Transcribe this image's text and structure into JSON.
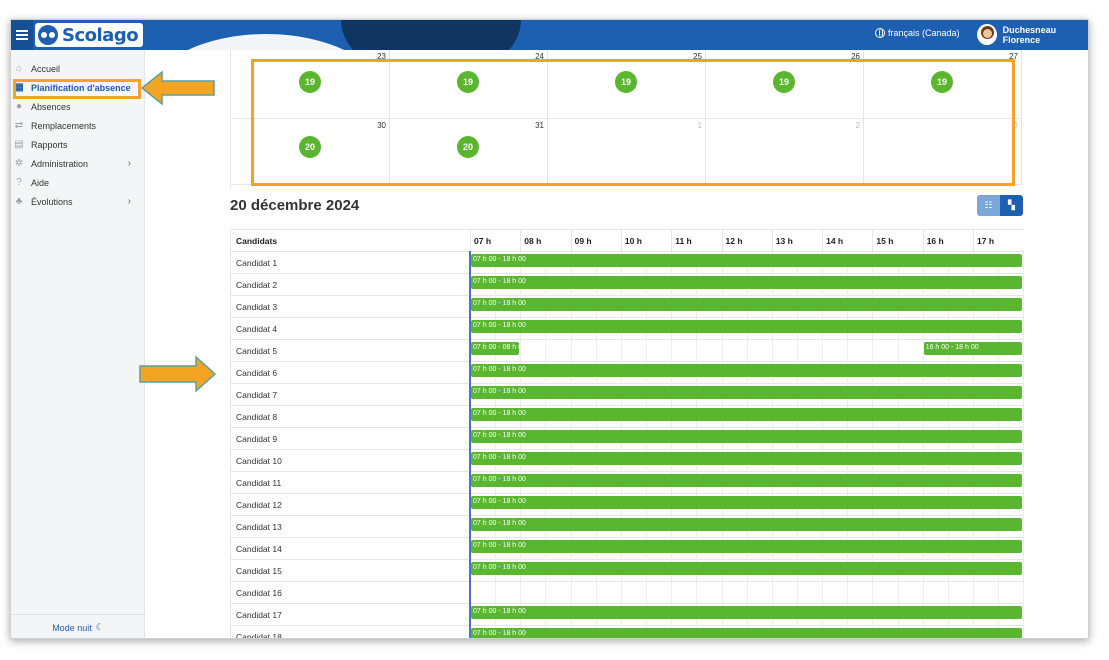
{
  "app": {
    "name": "Scolago"
  },
  "header": {
    "language": "français (Canada)",
    "user_name": "Duchesneau Florence"
  },
  "sidebar": {
    "items": [
      {
        "label": "Accueil",
        "icon": "home-icon",
        "glyph": "⌂"
      },
      {
        "label": "Planification d'absence",
        "icon": "calendar-icon",
        "glyph": "▦",
        "active": true
      },
      {
        "label": "Absences",
        "icon": "user-absence-icon",
        "glyph": "●"
      },
      {
        "label": "Remplacements",
        "icon": "swap-icon",
        "glyph": "⇄"
      },
      {
        "label": "Rapports",
        "icon": "document-icon",
        "glyph": "▤"
      },
      {
        "label": "Administration",
        "icon": "gear-icon",
        "glyph": "✲",
        "has_children": true
      },
      {
        "label": "Aide",
        "icon": "help-icon",
        "glyph": "?"
      },
      {
        "label": "Évolutions",
        "icon": "sprout-icon",
        "glyph": "♣",
        "has_children": true
      }
    ],
    "night_mode": "Mode nuit"
  },
  "calendar": {
    "weeks": [
      {
        "days": [
          {
            "num": "23",
            "badge": "19"
          },
          {
            "num": "24",
            "badge": "19"
          },
          {
            "num": "25",
            "badge": "19"
          },
          {
            "num": "26",
            "badge": "19"
          },
          {
            "num": "27",
            "badge": "19"
          }
        ]
      },
      {
        "days": [
          {
            "num": "30",
            "badge": "20"
          },
          {
            "num": "31",
            "badge": "20"
          },
          {
            "num": "1",
            "muted": true
          },
          {
            "num": "2",
            "muted": true
          },
          {
            "num": "3",
            "muted": true
          }
        ]
      }
    ]
  },
  "schedule": {
    "date_title": "20 décembre 2024",
    "header_candidates": "Candidats",
    "hours": [
      "07 h",
      "08 h",
      "09 h",
      "10 h",
      "11 h",
      "12 h",
      "13 h",
      "14 h",
      "15 h",
      "16 h",
      "17 h"
    ],
    "rows": [
      {
        "name": "Candidat 1",
        "slots": [
          {
            "label": "07 h 00 - 18 h 00",
            "start": 7,
            "end": 18
          }
        ]
      },
      {
        "name": "Candidat 2",
        "slots": [
          {
            "label": "07 h 00 - 18 h 00",
            "start": 7,
            "end": 18
          }
        ]
      },
      {
        "name": "Candidat 3",
        "slots": [
          {
            "label": "07 h 00 - 18 h 00",
            "start": 7,
            "end": 18
          }
        ]
      },
      {
        "name": "Candidat 4",
        "slots": [
          {
            "label": "07 h 00 - 18 h 00",
            "start": 7,
            "end": 18
          }
        ]
      },
      {
        "name": "Candidat 5",
        "slots": [
          {
            "label": "07 h 00 - 08 h 00",
            "start": 7,
            "end": 8
          },
          {
            "label": "16 h 00 - 18 h 00",
            "start": 16,
            "end": 18
          }
        ]
      },
      {
        "name": "Candidat 6",
        "slots": [
          {
            "label": "07 h 00 - 18 h 00",
            "start": 7,
            "end": 18
          }
        ]
      },
      {
        "name": "Candidat 7",
        "slots": [
          {
            "label": "07 h 00 - 18 h 00",
            "start": 7,
            "end": 18
          }
        ]
      },
      {
        "name": "Candidat 8",
        "slots": [
          {
            "label": "07 h 00 - 18 h 00",
            "start": 7,
            "end": 18
          }
        ]
      },
      {
        "name": "Candidat 9",
        "slots": [
          {
            "label": "07 h 00 - 18 h 00",
            "start": 7,
            "end": 18
          }
        ]
      },
      {
        "name": "Candidat 10",
        "slots": [
          {
            "label": "07 h 00 - 18 h 00",
            "start": 7,
            "end": 18
          }
        ]
      },
      {
        "name": "Candidat 11",
        "slots": [
          {
            "label": "07 h 00 - 18 h 00",
            "start": 7,
            "end": 18
          }
        ]
      },
      {
        "name": "Candidat 12",
        "slots": [
          {
            "label": "07 h 00 - 18 h 00",
            "start": 7,
            "end": 18
          }
        ]
      },
      {
        "name": "Candidat 13",
        "slots": [
          {
            "label": "07 h 00 - 18 h 00",
            "start": 7,
            "end": 18
          }
        ]
      },
      {
        "name": "Candidat 14",
        "slots": [
          {
            "label": "07 h 00 - 18 h 00",
            "start": 7,
            "end": 18
          }
        ]
      },
      {
        "name": "Candidat 15",
        "slots": [
          {
            "label": "07 h 00 - 18 h 00",
            "start": 7,
            "end": 18
          }
        ]
      },
      {
        "name": "Candidat 16",
        "slots": []
      },
      {
        "name": "Candidat 17",
        "slots": [
          {
            "label": "07 h 00 - 18 h 00",
            "start": 7,
            "end": 18
          }
        ]
      },
      {
        "name": "Candidat 18",
        "slots": [
          {
            "label": "07 h 00 - 18 h 00",
            "start": 7,
            "end": 18
          }
        ]
      }
    ]
  },
  "colors": {
    "brand": "#1d5fb0",
    "slot": "#5ab52f",
    "highlight": "#f4a423"
  }
}
